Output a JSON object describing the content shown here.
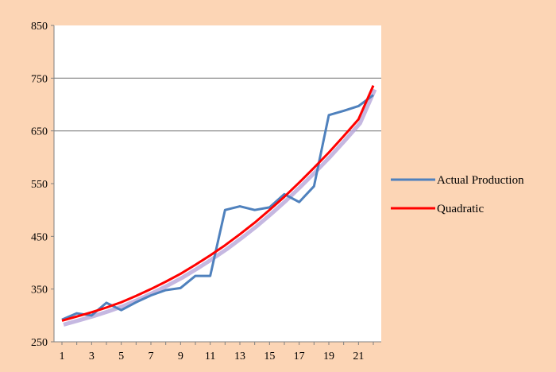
{
  "colors": {
    "background": "#fcd5b5",
    "plot_area": "#ffffff",
    "gridline": "#808080",
    "actual": "#4f81bd",
    "quadratic": "#ff0000",
    "quadratic_shadow": "#b7a6d9"
  },
  "chart_data": {
    "type": "line",
    "title": "",
    "xlabel": "",
    "ylabel": "",
    "ylim": [
      250,
      850
    ],
    "yticks": [
      250,
      350,
      450,
      550,
      650,
      750,
      850
    ],
    "xlim": [
      1,
      22
    ],
    "xticks": [
      1,
      3,
      5,
      7,
      9,
      11,
      13,
      15,
      17,
      19,
      21
    ],
    "grid": "horizontal",
    "gridlines_at": [
      650,
      750
    ],
    "legend_position": "right",
    "x": [
      1,
      2,
      3,
      4,
      5,
      6,
      7,
      8,
      9,
      10,
      11,
      12,
      13,
      14,
      15,
      16,
      17,
      18,
      19,
      20,
      21,
      22
    ],
    "series": [
      {
        "name": "Actual Production",
        "color": "#4f81bd",
        "values": [
          292,
          304,
          300,
          324,
          310,
          325,
          338,
          348,
          352,
          375,
          375,
          500,
          507,
          500,
          505,
          530,
          515,
          545,
          680,
          688,
          697,
          718
        ]
      },
      {
        "name": "Quadratic",
        "color": "#ff0000",
        "values": [
          290,
          298,
          306,
          315,
          325,
          337,
          350,
          364,
          379,
          396,
          414,
          433,
          454,
          476,
          500,
          525,
          552,
          580,
          609,
          640,
          672,
          736
        ]
      }
    ]
  }
}
